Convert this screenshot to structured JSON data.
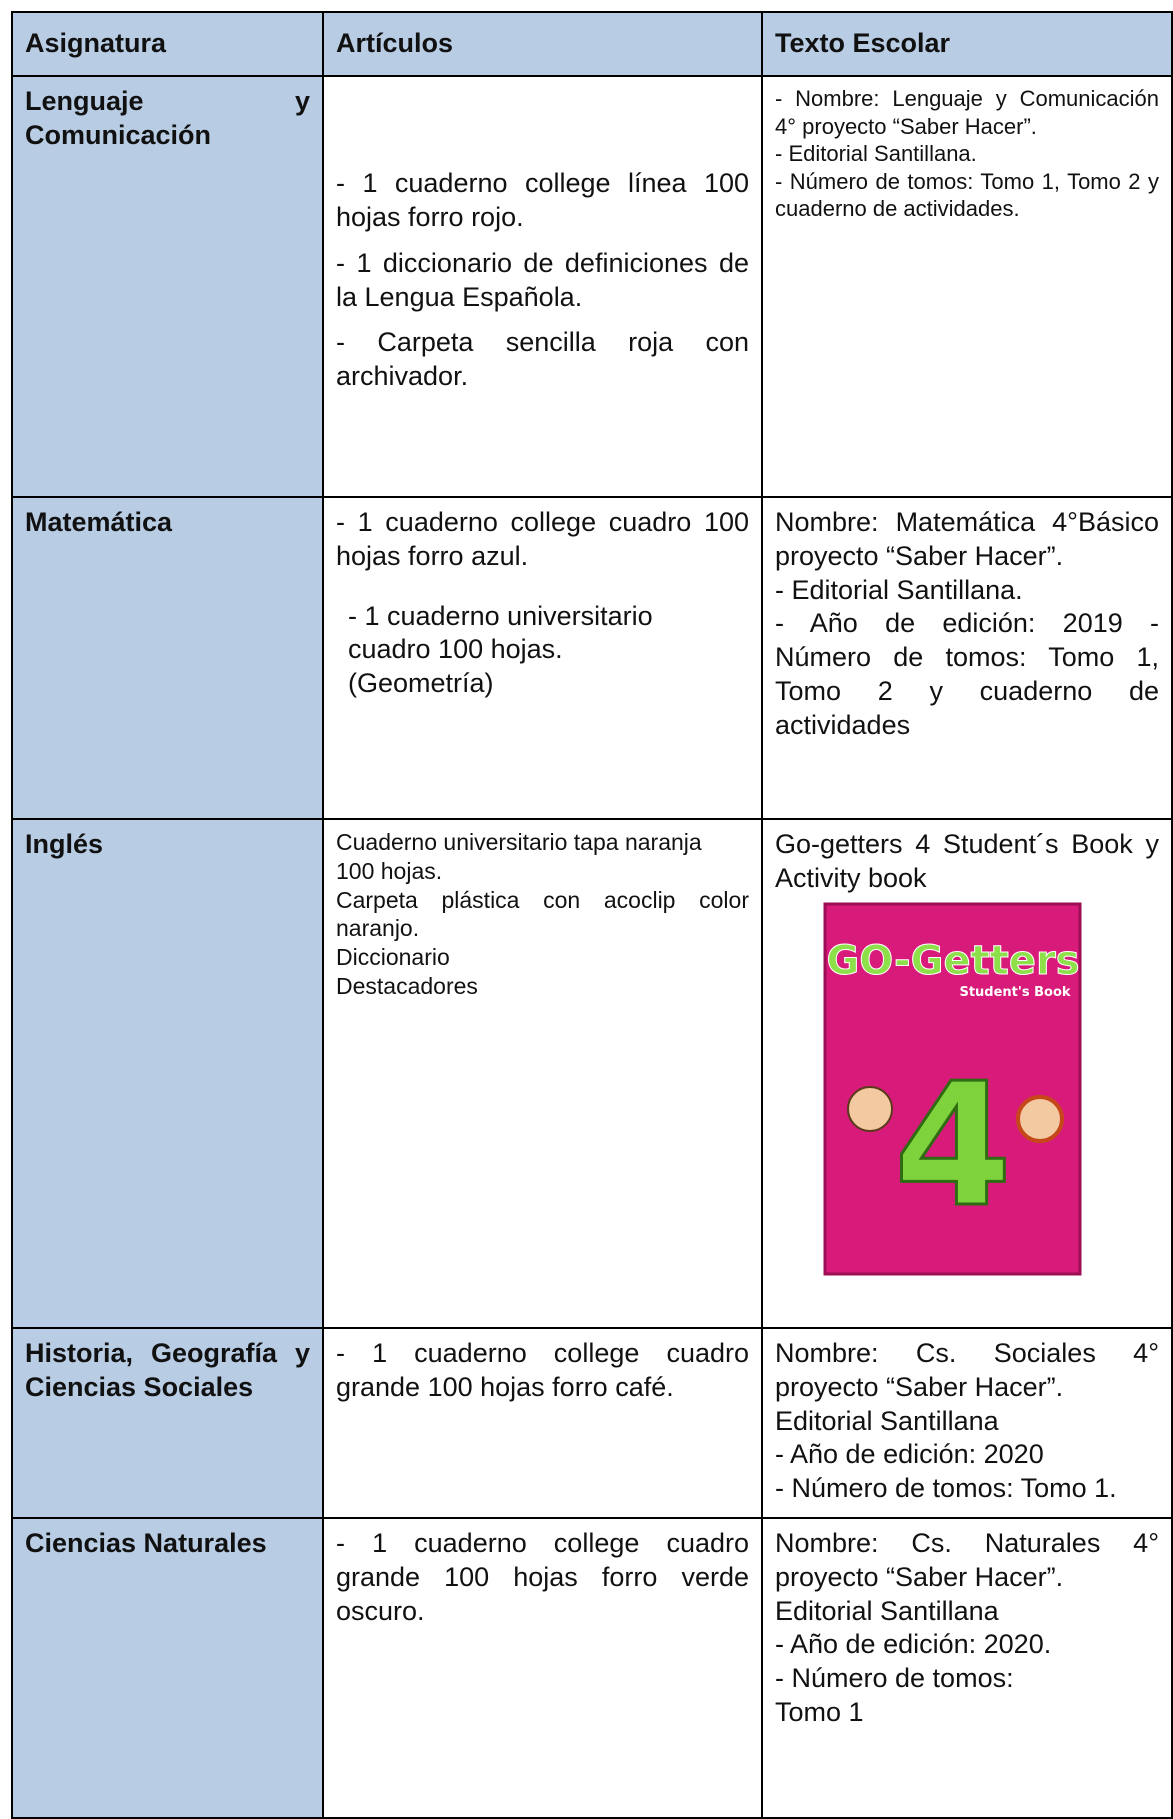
{
  "table": {
    "header": [
      "Asignatura",
      "Artículos",
      "Texto Escolar"
    ],
    "rows": [
      {
        "subject": "Lenguaje y Comunicación",
        "articles": [
          "- 1 cuaderno college línea 100 hojas forro rojo.",
          "- 1 diccionario de definiciones de la Lengua Española.",
          "- Carpeta sencilla roja con archivador."
        ],
        "book": [
          "- Nombre: Lenguaje y Comunicación 4° proyecto “Saber Hacer”.",
          "- Editorial Santillana.",
          "- Número de tomos: Tomo 1, Tomo 2 y cuaderno de actividades."
        ]
      },
      {
        "subject": "Matemática",
        "articles": [
          "- 1 cuaderno college cuadro 100 hojas forro azul.",
          "- 1 cuaderno universitario",
          "cuadro 100 hojas.",
          "(Geometría)"
        ],
        "book": [
          "Nombre: Matemática 4°Básico proyecto “Saber Hacer”.",
          "- Editorial Santillana.",
          "- Año de edición: 2019 - Número de tomos: Tomo 1, Tomo 2 y cuaderno de actividades"
        ]
      },
      {
        "subject": "Inglés",
        "articles": [
          "Cuaderno universitario tapa naranja",
          "100 hojas.",
          "Carpeta plástica con acoclip color naranjo.",
          "Diccionario",
          "Destacadores"
        ],
        "book": [
          "Go-getters 4 Student´s Book y Activity book"
        ],
        "cover": {
          "title": "GO-Getters",
          "subtitle": "Student's Book",
          "number": "4"
        }
      },
      {
        "subject": "Historia, Geografía y Ciencias Sociales",
        "articles": [
          "- 1 cuaderno college cuadro grande 100 hojas forro café."
        ],
        "book": [
          "Nombre: Cs. Sociales 4° proyecto “Saber Hacer”.",
          "Editorial Santillana",
          "- Año de edición: 2020",
          "- Número de tomos: Tomo 1."
        ]
      },
      {
        "subject": "Ciencias Naturales",
        "articles": [
          "- 1 cuaderno college cuadro grande 100 hojas forro verde oscuro."
        ],
        "book": [
          "Nombre: Cs. Naturales 4° proyecto “Saber Hacer”.",
          "Editorial Santillana",
          "- Año de edición: 2020.",
          "- Número de tomos:",
          "Tomo 1"
        ]
      }
    ]
  }
}
